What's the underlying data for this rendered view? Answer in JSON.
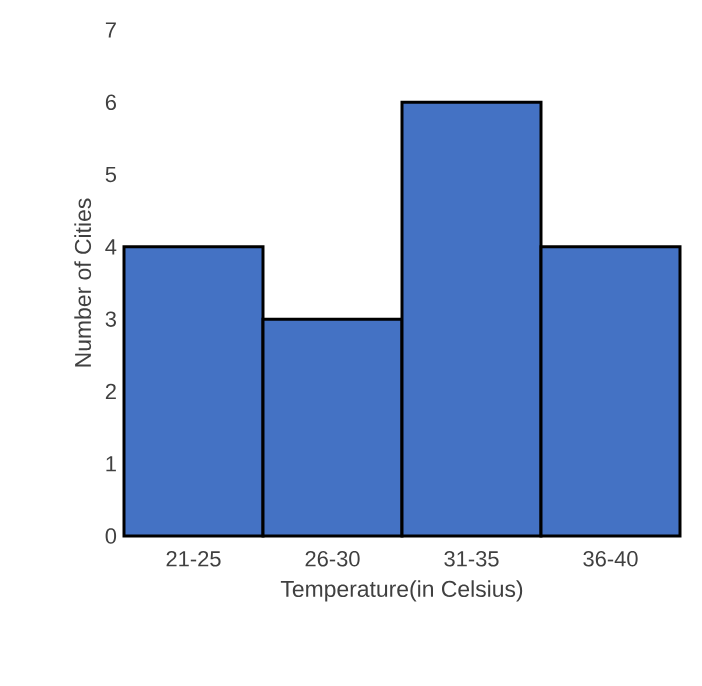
{
  "chart_data": {
    "type": "bar",
    "xlabel": "Temperature(in Celsius)",
    "ylabel": "Number of Cities",
    "categories": [
      "21-25",
      "26-30",
      "31-35",
      "36-40"
    ],
    "values": [
      4,
      3,
      6,
      4
    ],
    "color": "#4472c4",
    "ylim": [
      0,
      7
    ],
    "yticks": [
      0,
      1,
      2,
      3,
      4,
      5,
      6,
      7
    ]
  }
}
